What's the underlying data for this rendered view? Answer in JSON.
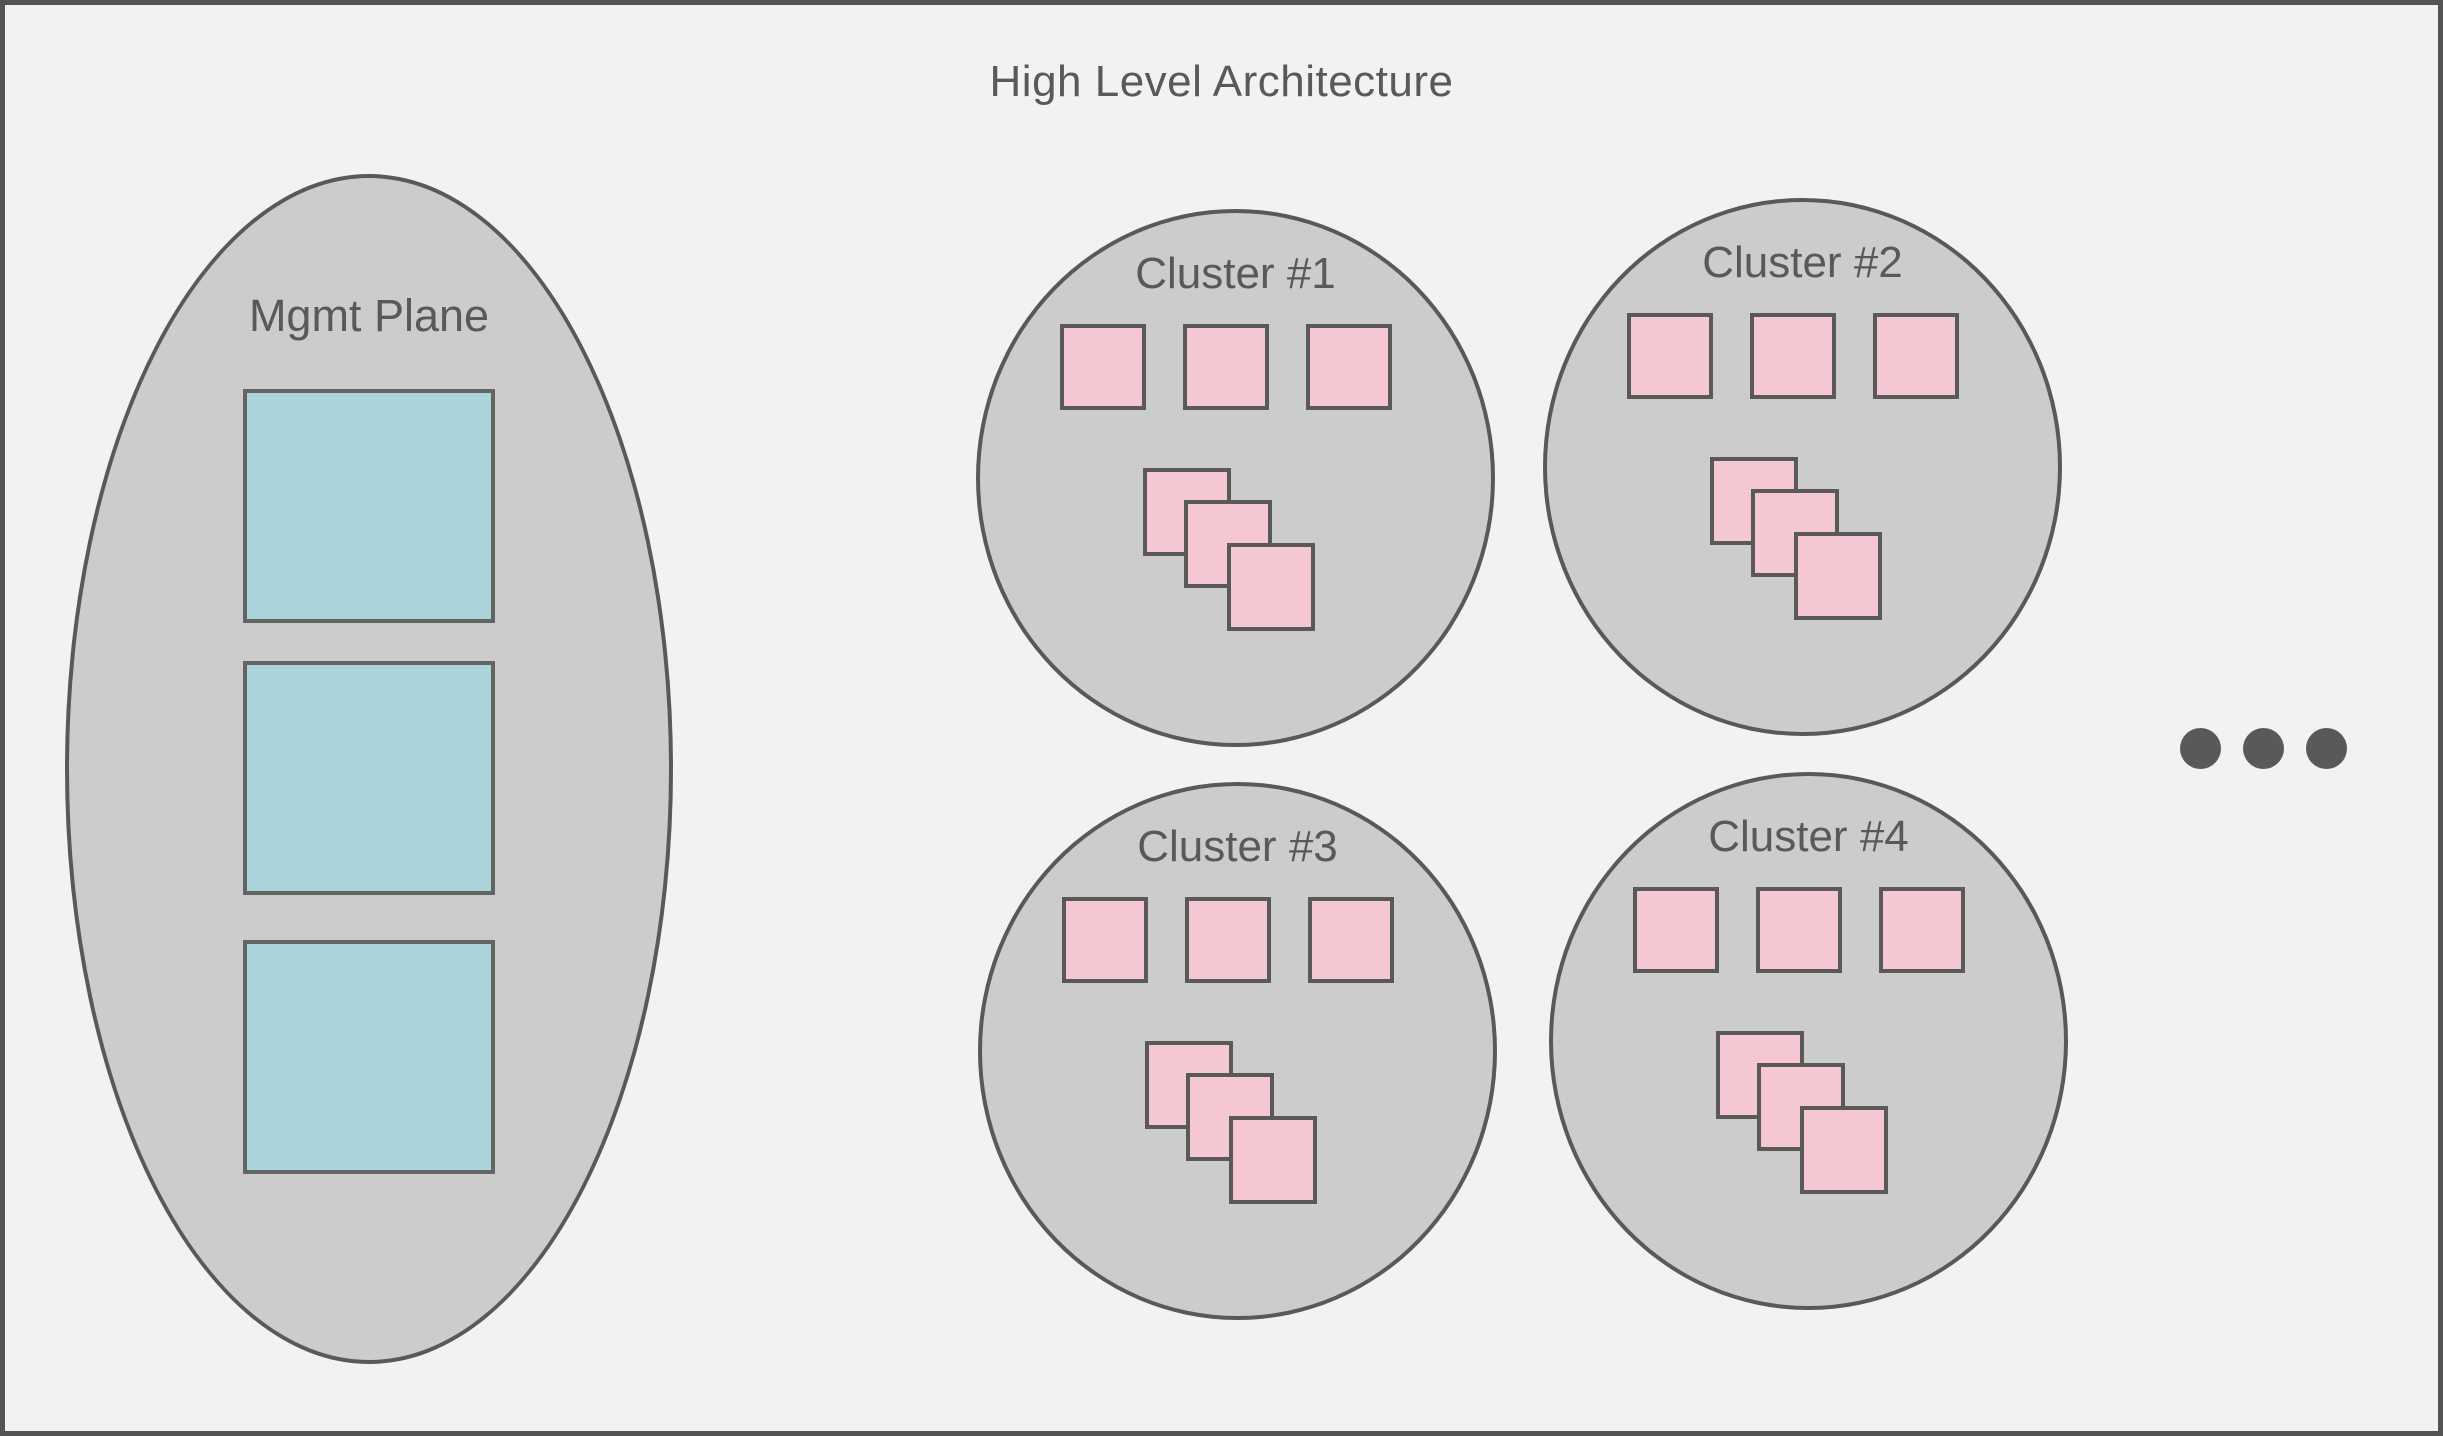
{
  "title": "High Level Architecture",
  "mgmt_plane": {
    "label": "Mgmt Plane",
    "box_count": 3
  },
  "clusters": [
    {
      "label": "Cluster #1",
      "node_count": 3,
      "stacked_node_count": 3
    },
    {
      "label": "Cluster #2",
      "node_count": 3,
      "stacked_node_count": 3
    },
    {
      "label": "Cluster #3",
      "node_count": 3,
      "stacked_node_count": 3
    },
    {
      "label": "Cluster #4",
      "node_count": 3,
      "stacked_node_count": 3
    }
  ],
  "more_indicator": {
    "icon": "ellipsis-dots",
    "dot_count": 3
  },
  "colors": {
    "canvas_background": "#f2f2f2",
    "frame_border": "#545454",
    "shape_fill": "#cccccc",
    "shape_stroke": "#595959",
    "mgmt_box_fill": "#abd4da",
    "node_fill": "#f4c7d3",
    "text": "#595959"
  }
}
